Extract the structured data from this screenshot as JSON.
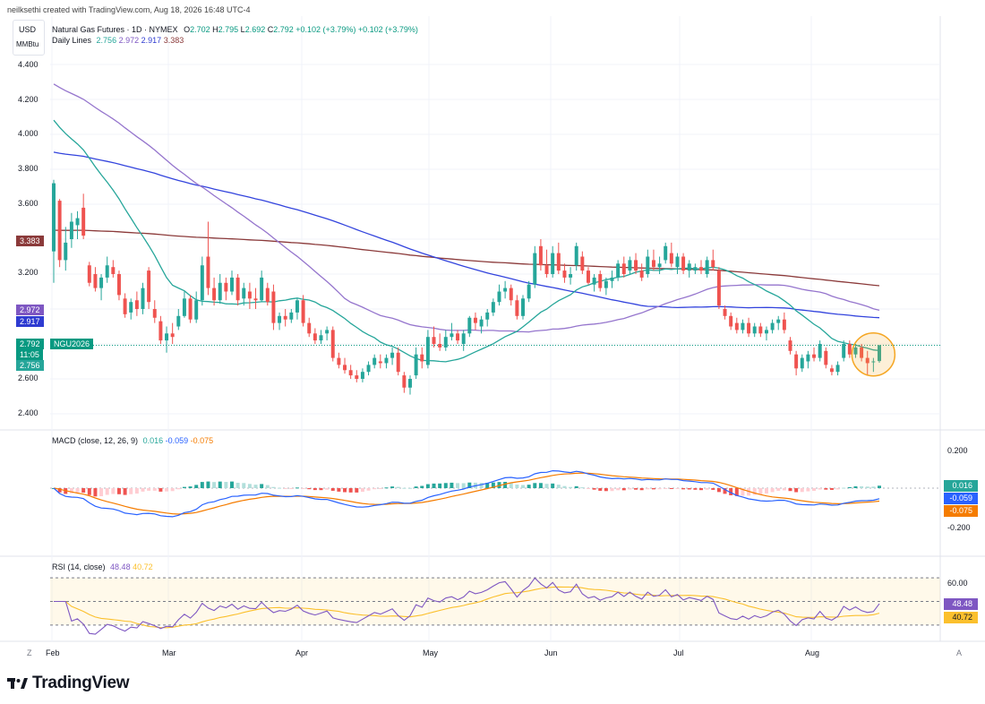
{
  "credit": "neilksethi created with TradingView.com, Aug 18, 2026 16:48 UTC-4",
  "currency_box": {
    "line1": "USD",
    "line2": "MMBtu"
  },
  "legend": {
    "title": "Natural Gas Futures · 1D · NYMEX",
    "o_label": "O",
    "o": "2.702",
    "h_label": "H",
    "h": "2.795",
    "l_label": "L",
    "l": "2.692",
    "c_label": "C",
    "c": "2.792",
    "chg": "+0.102 (+3.79%)",
    "chg2": "+0.102 (+3.79%)",
    "lines_title": "Daily Lines",
    "line_vals": [
      "2.756",
      "2.972",
      "2.917",
      "3.383"
    ]
  },
  "colors": {
    "up": "#26a69a",
    "down": "#ef5350",
    "sma20": "#26a69a",
    "sma50": "#9575cd",
    "sma100": "#3344dd",
    "sma200": "#8b3a3a",
    "macd": "#2962ff",
    "signal": "#f57c00",
    "rsi": "#7e57c2",
    "rsi_ma": "#fbc02d",
    "highlight": "#f5a623"
  },
  "price_badges": {
    "sma200": "3.383",
    "sma50": "2.972",
    "sma100": "2.917",
    "close": "2.792",
    "countdown": "11:05",
    "sma20": "2.756",
    "ticker": "NGU2026"
  },
  "macd_panel": {
    "title": "MACD (close, 12, 26, 9)",
    "vals": [
      "0.016",
      "-0.059",
      "-0.075"
    ],
    "tick_top": "0.200",
    "tick_bottom": "-0.200"
  },
  "rsi_panel": {
    "title": "RSI (14, close)",
    "vals": [
      "48.48",
      "40.72"
    ],
    "tick_60": "60.00"
  },
  "footer": {
    "z": "Z",
    "a": "A",
    "brand": "TradingView"
  },
  "chart_data": {
    "type": "candlestick",
    "title": "Natural Gas Futures · 1D · NYMEX",
    "ylim": [
      2.4,
      4.4
    ],
    "y_ticks": [
      "4.400",
      "4.200",
      "4.000",
      "3.800",
      "3.600",
      "3.200",
      "2.600",
      "2.400"
    ],
    "x_ticks": [
      "Feb",
      "Mar",
      "Apr",
      "May",
      "Jun",
      "Jul",
      "Aug"
    ],
    "candles": [
      {
        "t": "02-02",
        "o": 3.33,
        "h": 3.74,
        "l": 3.15,
        "c": 3.72
      },
      {
        "t": "02-03",
        "o": 3.62,
        "h": 3.63,
        "l": 3.24,
        "c": 3.28
      },
      {
        "t": "02-04",
        "o": 3.28,
        "h": 3.47,
        "l": 3.22,
        "c": 3.38
      },
      {
        "t": "02-05",
        "o": 3.4,
        "h": 3.55,
        "l": 3.35,
        "c": 3.5
      },
      {
        "t": "02-06",
        "o": 3.48,
        "h": 3.56,
        "l": 3.4,
        "c": 3.52
      },
      {
        "t": "02-09",
        "o": 3.58,
        "h": 3.66,
        "l": 3.4,
        "c": 3.42
      },
      {
        "t": "02-10",
        "o": 3.25,
        "h": 3.27,
        "l": 3.13,
        "c": 3.15
      },
      {
        "t": "02-11",
        "o": 3.2,
        "h": 3.24,
        "l": 3.1,
        "c": 3.12
      },
      {
        "t": "02-12",
        "o": 3.12,
        "h": 3.2,
        "l": 3.05,
        "c": 3.18
      },
      {
        "t": "02-13",
        "o": 3.18,
        "h": 3.3,
        "l": 3.15,
        "c": 3.25
      },
      {
        "t": "02-16",
        "o": 3.24,
        "h": 3.28,
        "l": 3.18,
        "c": 3.2
      },
      {
        "t": "02-17",
        "o": 3.2,
        "h": 3.22,
        "l": 3.05,
        "c": 3.08
      },
      {
        "t": "02-18",
        "o": 3.06,
        "h": 3.09,
        "l": 2.95,
        "c": 2.97
      },
      {
        "t": "02-19",
        "o": 2.98,
        "h": 3.06,
        "l": 2.94,
        "c": 3.04
      },
      {
        "t": "02-20",
        "o": 3.05,
        "h": 3.1,
        "l": 2.96,
        "c": 3.0
      },
      {
        "t": "02-23",
        "o": 3.0,
        "h": 3.15,
        "l": 2.97,
        "c": 3.12
      },
      {
        "t": "02-24",
        "o": 3.22,
        "h": 3.24,
        "l": 3.0,
        "c": 3.04
      },
      {
        "t": "02-25",
        "o": 3.0,
        "h": 3.05,
        "l": 2.92,
        "c": 2.95
      },
      {
        "t": "02-26",
        "o": 2.93,
        "h": 2.96,
        "l": 2.8,
        "c": 2.82
      },
      {
        "t": "02-27",
        "o": 2.82,
        "h": 2.9,
        "l": 2.75,
        "c": 2.86
      },
      {
        "t": "03-02",
        "o": 2.86,
        "h": 2.92,
        "l": 2.8,
        "c": 2.84
      },
      {
        "t": "03-03",
        "o": 2.9,
        "h": 3.0,
        "l": 2.88,
        "c": 2.96
      },
      {
        "t": "03-04",
        "o": 2.96,
        "h": 3.1,
        "l": 2.95,
        "c": 3.06
      },
      {
        "t": "03-05",
        "o": 3.06,
        "h": 3.08,
        "l": 2.92,
        "c": 2.94
      },
      {
        "t": "03-06",
        "o": 2.94,
        "h": 3.1,
        "l": 2.92,
        "c": 3.05
      },
      {
        "t": "03-09",
        "o": 3.05,
        "h": 3.3,
        "l": 3.02,
        "c": 3.25
      },
      {
        "t": "03-10",
        "o": 3.3,
        "h": 3.5,
        "l": 3.08,
        "c": 3.12
      },
      {
        "t": "03-11",
        "o": 3.12,
        "h": 3.18,
        "l": 3.02,
        "c": 3.05
      },
      {
        "t": "03-12",
        "o": 3.05,
        "h": 3.2,
        "l": 3.03,
        "c": 3.15
      },
      {
        "t": "03-13",
        "o": 3.15,
        "h": 3.18,
        "l": 3.05,
        "c": 3.1
      },
      {
        "t": "03-16",
        "o": 3.1,
        "h": 3.22,
        "l": 3.08,
        "c": 3.18
      },
      {
        "t": "03-17",
        "o": 3.18,
        "h": 3.2,
        "l": 3.02,
        "c": 3.05
      },
      {
        "t": "03-18",
        "o": 3.06,
        "h": 3.15,
        "l": 3.02,
        "c": 3.12
      },
      {
        "t": "03-19",
        "o": 3.1,
        "h": 3.15,
        "l": 3.0,
        "c": 3.06
      },
      {
        "t": "03-20",
        "o": 3.06,
        "h": 3.12,
        "l": 3.0,
        "c": 3.05
      },
      {
        "t": "03-23",
        "o": 3.05,
        "h": 3.22,
        "l": 3.04,
        "c": 3.18
      },
      {
        "t": "03-24",
        "o": 3.12,
        "h": 3.15,
        "l": 3.02,
        "c": 3.04
      },
      {
        "t": "03-25",
        "o": 3.1,
        "h": 3.14,
        "l": 2.88,
        "c": 2.92
      },
      {
        "t": "03-26",
        "o": 2.92,
        "h": 2.98,
        "l": 2.88,
        "c": 2.96
      },
      {
        "t": "03-27",
        "o": 2.96,
        "h": 3.0,
        "l": 2.9,
        "c": 2.94
      },
      {
        "t": "03-30",
        "o": 2.94,
        "h": 3.0,
        "l": 2.92,
        "c": 2.98
      },
      {
        "t": "03-31",
        "o": 2.98,
        "h": 3.06,
        "l": 2.94,
        "c": 3.05
      },
      {
        "t": "04-01",
        "o": 3.05,
        "h": 3.08,
        "l": 2.9,
        "c": 2.92
      },
      {
        "t": "04-02",
        "o": 2.92,
        "h": 2.95,
        "l": 2.84,
        "c": 2.86
      },
      {
        "t": "04-03",
        "o": 2.86,
        "h": 2.89,
        "l": 2.8,
        "c": 2.82
      },
      {
        "t": "04-06",
        "o": 2.82,
        "h": 2.88,
        "l": 2.8,
        "c": 2.85
      },
      {
        "t": "04-07",
        "o": 2.86,
        "h": 2.9,
        "l": 2.82,
        "c": 2.88
      },
      {
        "t": "04-08",
        "o": 2.88,
        "h": 2.9,
        "l": 2.7,
        "c": 2.72
      },
      {
        "t": "04-09",
        "o": 2.72,
        "h": 2.75,
        "l": 2.66,
        "c": 2.68
      },
      {
        "t": "04-10",
        "o": 2.68,
        "h": 2.72,
        "l": 2.63,
        "c": 2.65
      },
      {
        "t": "04-13",
        "o": 2.65,
        "h": 2.68,
        "l": 2.6,
        "c": 2.62
      },
      {
        "t": "04-14",
        "o": 2.62,
        "h": 2.65,
        "l": 2.58,
        "c": 2.6
      },
      {
        "t": "04-15",
        "o": 2.6,
        "h": 2.66,
        "l": 2.58,
        "c": 2.64
      },
      {
        "t": "04-16",
        "o": 2.64,
        "h": 2.7,
        "l": 2.62,
        "c": 2.68
      },
      {
        "t": "04-17",
        "o": 2.68,
        "h": 2.74,
        "l": 2.66,
        "c": 2.72
      },
      {
        "t": "04-20",
        "o": 2.7,
        "h": 2.74,
        "l": 2.66,
        "c": 2.69
      },
      {
        "t": "04-21",
        "o": 2.69,
        "h": 2.74,
        "l": 2.66,
        "c": 2.72
      },
      {
        "t": "04-22",
        "o": 2.72,
        "h": 2.78,
        "l": 2.68,
        "c": 2.75
      },
      {
        "t": "04-23",
        "o": 2.75,
        "h": 2.78,
        "l": 2.62,
        "c": 2.64
      },
      {
        "t": "04-24",
        "o": 2.62,
        "h": 2.64,
        "l": 2.52,
        "c": 2.55
      },
      {
        "t": "04-27",
        "o": 2.55,
        "h": 2.62,
        "l": 2.51,
        "c": 2.6
      },
      {
        "t": "04-28",
        "o": 2.62,
        "h": 2.78,
        "l": 2.6,
        "c": 2.74
      },
      {
        "t": "04-29",
        "o": 2.74,
        "h": 2.78,
        "l": 2.66,
        "c": 2.7
      },
      {
        "t": "04-30",
        "o": 2.68,
        "h": 2.88,
        "l": 2.66,
        "c": 2.84
      },
      {
        "t": "05-01",
        "o": 2.84,
        "h": 2.9,
        "l": 2.78,
        "c": 2.8
      },
      {
        "t": "05-04",
        "o": 2.8,
        "h": 2.86,
        "l": 2.76,
        "c": 2.78
      },
      {
        "t": "05-05",
        "o": 2.78,
        "h": 2.88,
        "l": 2.76,
        "c": 2.84
      },
      {
        "t": "05-06",
        "o": 2.84,
        "h": 2.92,
        "l": 2.82,
        "c": 2.86
      },
      {
        "t": "05-07",
        "o": 2.86,
        "h": 2.88,
        "l": 2.8,
        "c": 2.82
      },
      {
        "t": "05-08",
        "o": 2.8,
        "h": 2.88,
        "l": 2.76,
        "c": 2.86
      },
      {
        "t": "05-11",
        "o": 2.86,
        "h": 2.96,
        "l": 2.84,
        "c": 2.95
      },
      {
        "t": "05-12",
        "o": 2.95,
        "h": 2.98,
        "l": 2.88,
        "c": 2.92
      },
      {
        "t": "05-13",
        "o": 2.9,
        "h": 2.96,
        "l": 2.86,
        "c": 2.94
      },
      {
        "t": "05-14",
        "o": 2.94,
        "h": 3.0,
        "l": 2.9,
        "c": 2.98
      },
      {
        "t": "05-15",
        "o": 2.98,
        "h": 3.06,
        "l": 2.96,
        "c": 3.04
      },
      {
        "t": "05-18",
        "o": 3.04,
        "h": 3.14,
        "l": 3.02,
        "c": 3.1
      },
      {
        "t": "05-19",
        "o": 3.1,
        "h": 3.16,
        "l": 3.06,
        "c": 3.12
      },
      {
        "t": "05-20",
        "o": 3.12,
        "h": 3.14,
        "l": 3.02,
        "c": 3.05
      },
      {
        "t": "05-21",
        "o": 3.05,
        "h": 3.08,
        "l": 2.94,
        "c": 2.96
      },
      {
        "t": "05-22",
        "o": 2.96,
        "h": 3.08,
        "l": 2.94,
        "c": 3.06
      },
      {
        "t": "05-26",
        "o": 3.06,
        "h": 3.16,
        "l": 3.04,
        "c": 3.14
      },
      {
        "t": "05-27",
        "o": 3.14,
        "h": 3.36,
        "l": 3.12,
        "c": 3.32
      },
      {
        "t": "05-28",
        "o": 3.36,
        "h": 3.4,
        "l": 3.22,
        "c": 3.25
      },
      {
        "t": "05-29",
        "o": 3.25,
        "h": 3.34,
        "l": 3.18,
        "c": 3.2
      },
      {
        "t": "06-01",
        "o": 3.2,
        "h": 3.36,
        "l": 3.18,
        "c": 3.32
      },
      {
        "t": "06-02",
        "o": 3.32,
        "h": 3.38,
        "l": 3.2,
        "c": 3.22
      },
      {
        "t": "06-03",
        "o": 3.22,
        "h": 3.26,
        "l": 3.15,
        "c": 3.18
      },
      {
        "t": "06-04",
        "o": 3.18,
        "h": 3.24,
        "l": 3.14,
        "c": 3.2
      },
      {
        "t": "06-05",
        "o": 3.25,
        "h": 3.38,
        "l": 3.22,
        "c": 3.36
      },
      {
        "t": "06-08",
        "o": 3.3,
        "h": 3.33,
        "l": 3.2,
        "c": 3.22
      },
      {
        "t": "06-09",
        "o": 3.22,
        "h": 3.24,
        "l": 3.14,
        "c": 3.15
      },
      {
        "t": "06-10",
        "o": 3.14,
        "h": 3.2,
        "l": 3.1,
        "c": 3.18
      },
      {
        "t": "06-11",
        "o": 3.2,
        "h": 3.22,
        "l": 3.1,
        "c": 3.12
      },
      {
        "t": "06-12",
        "o": 3.12,
        "h": 3.18,
        "l": 3.08,
        "c": 3.16
      },
      {
        "t": "06-15",
        "o": 3.16,
        "h": 3.22,
        "l": 3.12,
        "c": 3.18
      },
      {
        "t": "06-16",
        "o": 3.18,
        "h": 3.28,
        "l": 3.16,
        "c": 3.26
      },
      {
        "t": "06-17",
        "o": 3.26,
        "h": 3.3,
        "l": 3.18,
        "c": 3.2
      },
      {
        "t": "06-18",
        "o": 3.22,
        "h": 3.3,
        "l": 3.2,
        "c": 3.28
      },
      {
        "t": "06-19",
        "o": 3.28,
        "h": 3.32,
        "l": 3.2,
        "c": 3.22
      },
      {
        "t": "06-22",
        "o": 3.22,
        "h": 3.26,
        "l": 3.16,
        "c": 3.18
      },
      {
        "t": "06-23",
        "o": 3.2,
        "h": 3.34,
        "l": 3.18,
        "c": 3.3
      },
      {
        "t": "06-24",
        "o": 3.28,
        "h": 3.34,
        "l": 3.22,
        "c": 3.24
      },
      {
        "t": "06-25",
        "o": 3.24,
        "h": 3.3,
        "l": 3.2,
        "c": 3.26
      },
      {
        "t": "06-26",
        "o": 3.28,
        "h": 3.38,
        "l": 3.26,
        "c": 3.36
      },
      {
        "t": "06-29",
        "o": 3.32,
        "h": 3.38,
        "l": 3.24,
        "c": 3.26
      },
      {
        "t": "06-30",
        "o": 3.24,
        "h": 3.32,
        "l": 3.2,
        "c": 3.3
      },
      {
        "t": "07-01",
        "o": 3.3,
        "h": 3.32,
        "l": 3.2,
        "c": 3.22
      },
      {
        "t": "07-02",
        "o": 3.22,
        "h": 3.28,
        "l": 3.18,
        "c": 3.26
      },
      {
        "t": "07-06",
        "o": 3.22,
        "h": 3.26,
        "l": 3.2,
        "c": 3.24
      },
      {
        "t": "07-07",
        "o": 3.24,
        "h": 3.28,
        "l": 3.2,
        "c": 3.22
      },
      {
        "t": "07-08",
        "o": 3.2,
        "h": 3.3,
        "l": 3.18,
        "c": 3.28
      },
      {
        "t": "07-09",
        "o": 3.28,
        "h": 3.34,
        "l": 3.22,
        "c": 3.24
      },
      {
        "t": "07-10",
        "o": 3.22,
        "h": 3.24,
        "l": 3.0,
        "c": 3.02
      },
      {
        "t": "07-13",
        "o": 3.0,
        "h": 3.02,
        "l": 2.94,
        "c": 2.96
      },
      {
        "t": "07-14",
        "o": 2.96,
        "h": 2.98,
        "l": 2.88,
        "c": 2.9
      },
      {
        "t": "07-15",
        "o": 2.92,
        "h": 2.95,
        "l": 2.86,
        "c": 2.88
      },
      {
        "t": "07-16",
        "o": 2.88,
        "h": 2.94,
        "l": 2.86,
        "c": 2.92
      },
      {
        "t": "07-17",
        "o": 2.92,
        "h": 2.95,
        "l": 2.84,
        "c": 2.86
      },
      {
        "t": "07-20",
        "o": 2.86,
        "h": 2.92,
        "l": 2.84,
        "c": 2.9
      },
      {
        "t": "07-21",
        "o": 2.9,
        "h": 2.92,
        "l": 2.84,
        "c": 2.86
      },
      {
        "t": "07-22",
        "o": 2.86,
        "h": 2.9,
        "l": 2.82,
        "c": 2.88
      },
      {
        "t": "07-23",
        "o": 2.88,
        "h": 2.94,
        "l": 2.86,
        "c": 2.92
      },
      {
        "t": "07-24",
        "o": 2.92,
        "h": 2.96,
        "l": 2.88,
        "c": 2.94
      },
      {
        "t": "07-27",
        "o": 2.94,
        "h": 2.98,
        "l": 2.86,
        "c": 2.88
      },
      {
        "t": "07-28",
        "o": 2.82,
        "h": 2.84,
        "l": 2.74,
        "c": 2.76
      },
      {
        "t": "07-29",
        "o": 2.74,
        "h": 2.76,
        "l": 2.62,
        "c": 2.66
      },
      {
        "t": "07-30",
        "o": 2.66,
        "h": 2.74,
        "l": 2.64,
        "c": 2.72
      },
      {
        "t": "07-31",
        "o": 2.7,
        "h": 2.76,
        "l": 2.66,
        "c": 2.74
      },
      {
        "t": "08-03",
        "o": 2.74,
        "h": 2.78,
        "l": 2.7,
        "c": 2.72
      },
      {
        "t": "08-04",
        "o": 2.72,
        "h": 2.82,
        "l": 2.7,
        "c": 2.8
      },
      {
        "t": "08-05",
        "o": 2.76,
        "h": 2.78,
        "l": 2.66,
        "c": 2.68
      },
      {
        "t": "08-06",
        "o": 2.66,
        "h": 2.68,
        "l": 2.62,
        "c": 2.64
      },
      {
        "t": "08-07",
        "o": 2.64,
        "h": 2.7,
        "l": 2.62,
        "c": 2.68
      },
      {
        "t": "08-10",
        "o": 2.72,
        "h": 2.82,
        "l": 2.7,
        "c": 2.8
      },
      {
        "t": "08-11",
        "o": 2.8,
        "h": 2.82,
        "l": 2.72,
        "c": 2.74
      },
      {
        "t": "08-12",
        "o": 2.74,
        "h": 2.8,
        "l": 2.72,
        "c": 2.78
      },
      {
        "t": "08-13",
        "o": 2.78,
        "h": 2.8,
        "l": 2.7,
        "c": 2.72
      },
      {
        "t": "08-14",
        "o": 2.72,
        "h": 2.76,
        "l": 2.62,
        "c": 2.69
      },
      {
        "t": "08-17",
        "o": 2.7,
        "h": 2.72,
        "l": 2.64,
        "c": 2.7
      },
      {
        "t": "08-18",
        "o": 2.702,
        "h": 2.795,
        "l": 2.692,
        "c": 2.792
      }
    ]
  }
}
